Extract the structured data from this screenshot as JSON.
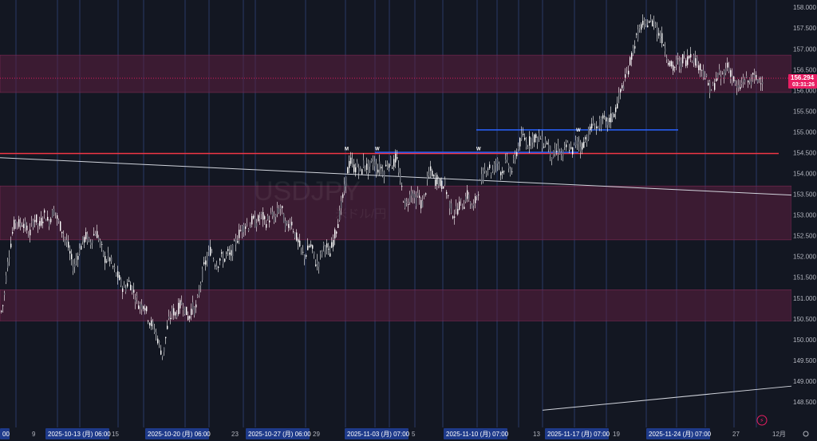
{
  "chart_data": {
    "type": "candlestick",
    "symbol": "USDJPY",
    "watermark": {
      "symbol": "USDJPY",
      "name": "米ドル/円"
    },
    "current_price": "156.294",
    "countdown": "03:31:26",
    "colors": {
      "background": "#131722",
      "candle_up": "#ffffff",
      "candle_down": "#ffffff",
      "zone_fill": "#5c1f3f",
      "red_line": "#f23645",
      "blue_line": "#2962ff",
      "trendline": "#d1d4dc",
      "session_line": "#2a3a66",
      "highlight_label": "#1e3a8a",
      "price_badge": "#e91e63"
    },
    "y_axis": {
      "range": [
        148.25,
        158.1
      ],
      "ticks": [
        "158.000",
        "157.500",
        "157.000",
        "156.500",
        "156.000",
        "155.500",
        "155.000",
        "154.500",
        "154.000",
        "153.500",
        "153.000",
        "152.500",
        "152.000",
        "151.500",
        "151.000",
        "150.500",
        "150.000",
        "149.500",
        "149.000",
        "148.500"
      ]
    },
    "x_axis": {
      "labels": [
        {
          "text": "00",
          "highlight": true
        },
        {
          "text": "9",
          "highlight": false
        },
        {
          "text": "2025-10-13 (月)   06:00",
          "highlight": true
        },
        {
          "text": "15",
          "highlight": false
        },
        {
          "text": "2025-10-20 (月)   06:00",
          "highlight": true
        },
        {
          "text": "23",
          "highlight": false
        },
        {
          "text": "2025-10-27 (月)   06:00",
          "highlight": true
        },
        {
          "text": "29",
          "highlight": false
        },
        {
          "text": "2025-11-03 (月)   07:00",
          "highlight": true
        },
        {
          "text": "5",
          "highlight": false
        },
        {
          "text": "2025-11-10 (月)   07:00",
          "highlight": true
        },
        {
          "text": "13",
          "highlight": false
        },
        {
          "text": "2025-11-17 (月)   07:00",
          "highlight": true
        },
        {
          "text": "19",
          "highlight": false
        },
        {
          "text": "2025-11-24 (月)   07:00",
          "highlight": true
        },
        {
          "text": "27",
          "highlight": false
        },
        {
          "text": "12月",
          "highlight": false
        }
      ]
    },
    "zones": [
      {
        "from": 155.95,
        "to": 156.85
      },
      {
        "from": 152.4,
        "to": 153.7
      },
      {
        "from": 150.45,
        "to": 151.2
      }
    ],
    "horizontal_lines": [
      {
        "price": 154.48,
        "color": "red"
      },
      {
        "price": 154.5,
        "color": "blue",
        "label": "W"
      },
      {
        "price": 155.05,
        "color": "blue",
        "label": "W"
      }
    ],
    "markers": [
      "M",
      "W",
      "W",
      "W"
    ],
    "trendlines": [
      {
        "from": [
          "2025-10-06",
          154.38
        ],
        "to": [
          "2025-12-01",
          153.48
        ]
      },
      {
        "from": [
          "2025-11-17",
          148.3
        ],
        "to": [
          "2025-12-01",
          148.88
        ]
      }
    ],
    "path": [
      [
        0,
        150.6
      ],
      [
        4,
        150.9
      ],
      [
        8,
        151.7
      ],
      [
        12,
        152.2
      ],
      [
        16,
        152.7
      ],
      [
        20,
        152.9
      ],
      [
        24,
        152.75
      ],
      [
        28,
        152.85
      ],
      [
        32,
        152.7
      ],
      [
        36,
        152.5
      ],
      [
        40,
        152.8
      ],
      [
        44,
        152.95
      ],
      [
        48,
        152.7
      ],
      [
        52,
        152.9
      ],
      [
        56,
        153.05
      ],
      [
        60,
        152.8
      ],
      [
        64,
        153.0
      ],
      [
        68,
        153.15
      ],
      [
        72,
        152.85
      ],
      [
        76,
        152.7
      ],
      [
        80,
        152.5
      ],
      [
        84,
        152.3
      ],
      [
        88,
        152.0
      ],
      [
        92,
        151.7
      ],
      [
        96,
        152.0
      ],
      [
        100,
        152.2
      ],
      [
        104,
        152.4
      ],
      [
        108,
        152.5
      ],
      [
        112,
        152.3
      ],
      [
        116,
        152.5
      ],
      [
        120,
        152.6
      ],
      [
        124,
        152.4
      ],
      [
        128,
        152.1
      ],
      [
        132,
        151.9
      ],
      [
        136,
        152.0
      ],
      [
        140,
        151.8
      ],
      [
        144,
        151.6
      ],
      [
        148,
        151.5
      ],
      [
        152,
        151.3
      ],
      [
        156,
        151.2
      ],
      [
        160,
        151.4
      ],
      [
        164,
        151.3
      ],
      [
        168,
        151.1
      ],
      [
        172,
        150.9
      ],
      [
        176,
        150.8
      ],
      [
        180,
        150.9
      ],
      [
        184,
        150.6
      ],
      [
        188,
        150.4
      ],
      [
        192,
        150.3
      ],
      [
        196,
        150.1
      ],
      [
        200,
        149.8
      ],
      [
        204,
        149.6
      ],
      [
        208,
        150.2
      ],
      [
        212,
        150.5
      ],
      [
        216,
        150.7
      ],
      [
        220,
        150.6
      ],
      [
        224,
        150.8
      ],
      [
        228,
        150.9
      ],
      [
        232,
        150.7
      ],
      [
        236,
        150.5
      ],
      [
        240,
        150.8
      ],
      [
        244,
        150.7
      ],
      [
        248,
        151.0
      ],
      [
        252,
        151.5
      ],
      [
        256,
        151.8
      ],
      [
        260,
        152.0
      ],
      [
        264,
        152.2
      ],
      [
        268,
        151.9
      ],
      [
        272,
        151.8
      ],
      [
        276,
        152.0
      ],
      [
        280,
        151.9
      ],
      [
        284,
        152.1
      ],
      [
        288,
        152.0
      ],
      [
        292,
        152.2
      ],
      [
        296,
        152.4
      ],
      [
        300,
        152.6
      ],
      [
        304,
        152.7
      ],
      [
        308,
        152.8
      ],
      [
        312,
        152.7
      ],
      [
        316,
        152.9
      ],
      [
        320,
        152.8
      ],
      [
        324,
        152.9
      ],
      [
        328,
        153.0
      ],
      [
        332,
        152.8
      ],
      [
        336,
        152.9
      ],
      [
        340,
        153.0
      ],
      [
        344,
        152.9
      ],
      [
        348,
        153.1
      ],
      [
        352,
        153.2
      ],
      [
        356,
        152.8
      ],
      [
        360,
        152.7
      ],
      [
        364,
        152.9
      ],
      [
        368,
        152.6
      ],
      [
        372,
        152.4
      ],
      [
        376,
        152.2
      ],
      [
        380,
        152.0
      ],
      [
        384,
        152.1
      ],
      [
        388,
        152.3
      ],
      [
        392,
        152.1
      ],
      [
        396,
        151.8
      ],
      [
        400,
        151.9
      ],
      [
        404,
        152.2
      ],
      [
        408,
        152.3
      ],
      [
        412,
        152.0
      ],
      [
        416,
        152.3
      ],
      [
        420,
        152.6
      ],
      [
        424,
        152.9
      ],
      [
        428,
        153.3
      ],
      [
        432,
        153.7
      ],
      [
        436,
        154.2
      ],
      [
        440,
        154.3
      ],
      [
        444,
        154.1
      ],
      [
        448,
        154.2
      ],
      [
        452,
        154.0
      ],
      [
        456,
        154.3
      ],
      [
        460,
        154.1
      ],
      [
        464,
        154.2
      ],
      [
        468,
        154.3
      ],
      [
        472,
        154.1
      ],
      [
        476,
        154.2
      ],
      [
        480,
        154.0
      ],
      [
        484,
        154.2
      ],
      [
        488,
        154.3
      ],
      [
        492,
        154.2
      ],
      [
        496,
        154.4
      ],
      [
        500,
        154.0
      ],
      [
        504,
        153.5
      ],
      [
        508,
        153.2
      ],
      [
        512,
        153.4
      ],
      [
        516,
        153.6
      ],
      [
        520,
        153.3
      ],
      [
        524,
        153.5
      ],
      [
        528,
        153.2
      ],
      [
        532,
        153.5
      ],
      [
        536,
        153.9
      ],
      [
        540,
        154.1
      ],
      [
        544,
        153.8
      ],
      [
        548,
        153.9
      ],
      [
        552,
        153.7
      ],
      [
        556,
        153.8
      ],
      [
        560,
        153.5
      ],
      [
        564,
        153.2
      ],
      [
        568,
        153.0
      ],
      [
        572,
        153.1
      ],
      [
        576,
        153.3
      ],
      [
        580,
        153.2
      ],
      [
        584,
        153.5
      ],
      [
        588,
        153.4
      ],
      [
        592,
        153.1
      ],
      [
        596,
        153.4
      ],
      [
        600,
        153.7
      ],
      [
        604,
        153.9
      ],
      [
        608,
        154.1
      ],
      [
        612,
        154.2
      ],
      [
        616,
        154.0
      ],
      [
        620,
        154.2
      ],
      [
        624,
        154.3
      ],
      [
        628,
        154.0
      ],
      [
        632,
        154.2
      ],
      [
        636,
        154.3
      ],
      [
        640,
        154.0
      ],
      [
        644,
        154.3
      ],
      [
        648,
        154.6
      ],
      [
        652,
        154.8
      ],
      [
        656,
        154.9
      ],
      [
        660,
        154.7
      ],
      [
        664,
        154.8
      ],
      [
        668,
        154.9
      ],
      [
        672,
        154.8
      ],
      [
        676,
        154.9
      ],
      [
        680,
        154.7
      ],
      [
        684,
        154.8
      ],
      [
        688,
        154.6
      ],
      [
        692,
        154.4
      ],
      [
        696,
        154.5
      ],
      [
        700,
        154.6
      ],
      [
        704,
        154.4
      ],
      [
        708,
        154.6
      ],
      [
        712,
        154.7
      ],
      [
        716,
        154.5
      ],
      [
        720,
        154.7
      ],
      [
        724,
        154.8
      ],
      [
        728,
        154.6
      ],
      [
        732,
        154.8
      ],
      [
        736,
        154.9
      ],
      [
        740,
        155.1
      ],
      [
        744,
        155.2
      ],
      [
        748,
        155.1
      ],
      [
        752,
        155.2
      ],
      [
        756,
        155.3
      ],
      [
        760,
        155.2
      ],
      [
        764,
        155.3
      ],
      [
        768,
        155.4
      ],
      [
        772,
        155.6
      ],
      [
        776,
        155.9
      ],
      [
        780,
        156.1
      ],
      [
        784,
        156.3
      ],
      [
        788,
        156.6
      ],
      [
        792,
        156.9
      ],
      [
        796,
        157.2
      ],
      [
        800,
        157.4
      ],
      [
        804,
        157.6
      ],
      [
        808,
        157.5
      ],
      [
        812,
        157.7
      ],
      [
        816,
        157.6
      ],
      [
        820,
        157.7
      ],
      [
        824,
        157.4
      ],
      [
        828,
        157.3
      ],
      [
        832,
        157.1
      ],
      [
        836,
        156.8
      ],
      [
        840,
        156.6
      ],
      [
        844,
        156.5
      ],
      [
        848,
        156.7
      ],
      [
        852,
        156.6
      ],
      [
        856,
        156.8
      ],
      [
        860,
        156.7
      ],
      [
        864,
        156.9
      ],
      [
        868,
        156.8
      ],
      [
        872,
        156.7
      ],
      [
        876,
        156.6
      ],
      [
        880,
        156.5
      ],
      [
        884,
        156.3
      ],
      [
        888,
        156.1
      ],
      [
        892,
        156.0
      ],
      [
        896,
        156.2
      ],
      [
        900,
        156.4
      ],
      [
        904,
        156.3
      ],
      [
        908,
        156.5
      ],
      [
        912,
        156.6
      ],
      [
        916,
        156.4
      ],
      [
        920,
        156.2
      ],
      [
        924,
        156.0
      ],
      [
        928,
        156.1
      ],
      [
        932,
        156.3
      ],
      [
        936,
        156.2
      ],
      [
        940,
        156.25
      ],
      [
        944,
        156.3
      ],
      [
        948,
        156.25
      ],
      [
        952,
        156.3
      ],
      [
        956,
        156.29
      ]
    ]
  }
}
